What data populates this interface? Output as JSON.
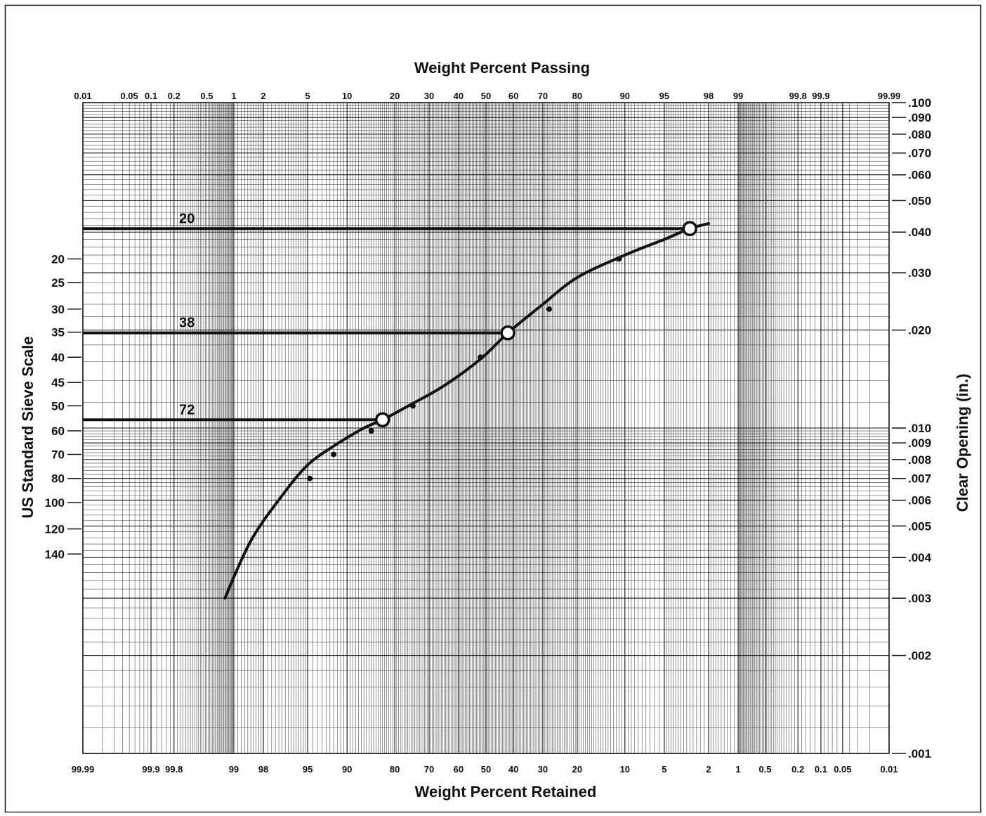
{
  "chart_data": {
    "type": "line",
    "title_top": "Weight Percent Passing",
    "xlabel": "Weight Percent Retained",
    "ylabel_left": "US Standard Sieve Scale",
    "ylabel_right": "Clear Opening (in.)",
    "x_scale": "probability",
    "y_scale": "log",
    "ylim": [
      0.001,
      0.1
    ],
    "grid": true,
    "bottom_ticks": [
      "0.01",
      "0.05",
      "0.1",
      "0.2",
      "0.5",
      "1",
      "2",
      "5",
      "10",
      "20",
      "30",
      "40",
      "50",
      "60",
      "70",
      "80",
      "90",
      "95",
      "98",
      "99",
      "99.8",
      "99.9",
      "99.99"
    ],
    "top_ticks": [
      "99.99",
      "99.9",
      "99.8",
      "99",
      "98",
      "95",
      "90",
      "80",
      "70",
      "60",
      "50",
      "40",
      "30",
      "20",
      "10",
      "5",
      "2",
      "1",
      "0.5",
      "0.2",
      "0.1",
      "0.05",
      "0.01"
    ],
    "right_ticks": [
      ".100",
      ".090",
      ".080",
      ".070",
      ".060",
      ".050",
      ".040",
      ".030",
      ".020",
      ".010",
      ".009",
      ".008",
      ".007",
      ".006",
      ".005",
      ".004",
      ".003",
      ".002",
      ".001"
    ],
    "left_ticks": [
      {
        "label": "20",
        "opening": 0.0331
      },
      {
        "label": "25",
        "opening": 0.028
      },
      {
        "label": "30",
        "opening": 0.0232
      },
      {
        "label": "35",
        "opening": 0.0197
      },
      {
        "label": "40",
        "opening": 0.0165
      },
      {
        "label": "45",
        "opening": 0.0138
      },
      {
        "label": "50",
        "opening": 0.0117
      },
      {
        "label": "60",
        "opening": 0.0098
      },
      {
        "label": "70",
        "opening": 0.0083
      },
      {
        "label": "80",
        "opening": 0.007
      },
      {
        "label": "100",
        "opening": 0.0059
      },
      {
        "label": "120",
        "opening": 0.0049
      },
      {
        "label": "140",
        "opening": 0.0041
      }
    ],
    "series": [
      {
        "values": [
          [
            2.0,
            0.0425
          ],
          [
            3.0,
            0.041
          ],
          [
            5.0,
            0.038
          ],
          [
            10.0,
            0.034
          ],
          [
            20.0,
            0.029
          ],
          [
            30.0,
            0.024
          ],
          [
            42.0,
            0.0196
          ],
          [
            52.0,
            0.0163
          ],
          [
            65.0,
            0.0135
          ],
          [
            75.0,
            0.0119
          ],
          [
            83.0,
            0.0106
          ],
          [
            87.0,
            0.01
          ],
          [
            92.0,
            0.0088
          ],
          [
            95.0,
            0.0077
          ],
          [
            97.0,
            0.0062
          ],
          [
            98.5,
            0.0045
          ],
          [
            99.2,
            0.003
          ]
        ]
      }
    ],
    "points": [
      [
        11.0,
        0.0331
      ],
      [
        28.0,
        0.0232
      ],
      [
        52.0,
        0.0165
      ],
      [
        75.0,
        0.0117
      ],
      [
        85.5,
        0.0098
      ],
      [
        92.0,
        0.0083
      ],
      [
        94.8,
        0.007
      ]
    ],
    "circled_points": [
      [
        3.0,
        0.041
      ],
      [
        42.0,
        0.0196
      ],
      [
        83.0,
        0.0106
      ]
    ],
    "reference_lines": [
      {
        "label": "20",
        "opening": 0.041,
        "to_retained": 3.0
      },
      {
        "label": "38",
        "opening": 0.0196,
        "to_retained": 42.0
      },
      {
        "label": "72",
        "opening": 0.0106,
        "to_retained": 83.0
      }
    ]
  }
}
